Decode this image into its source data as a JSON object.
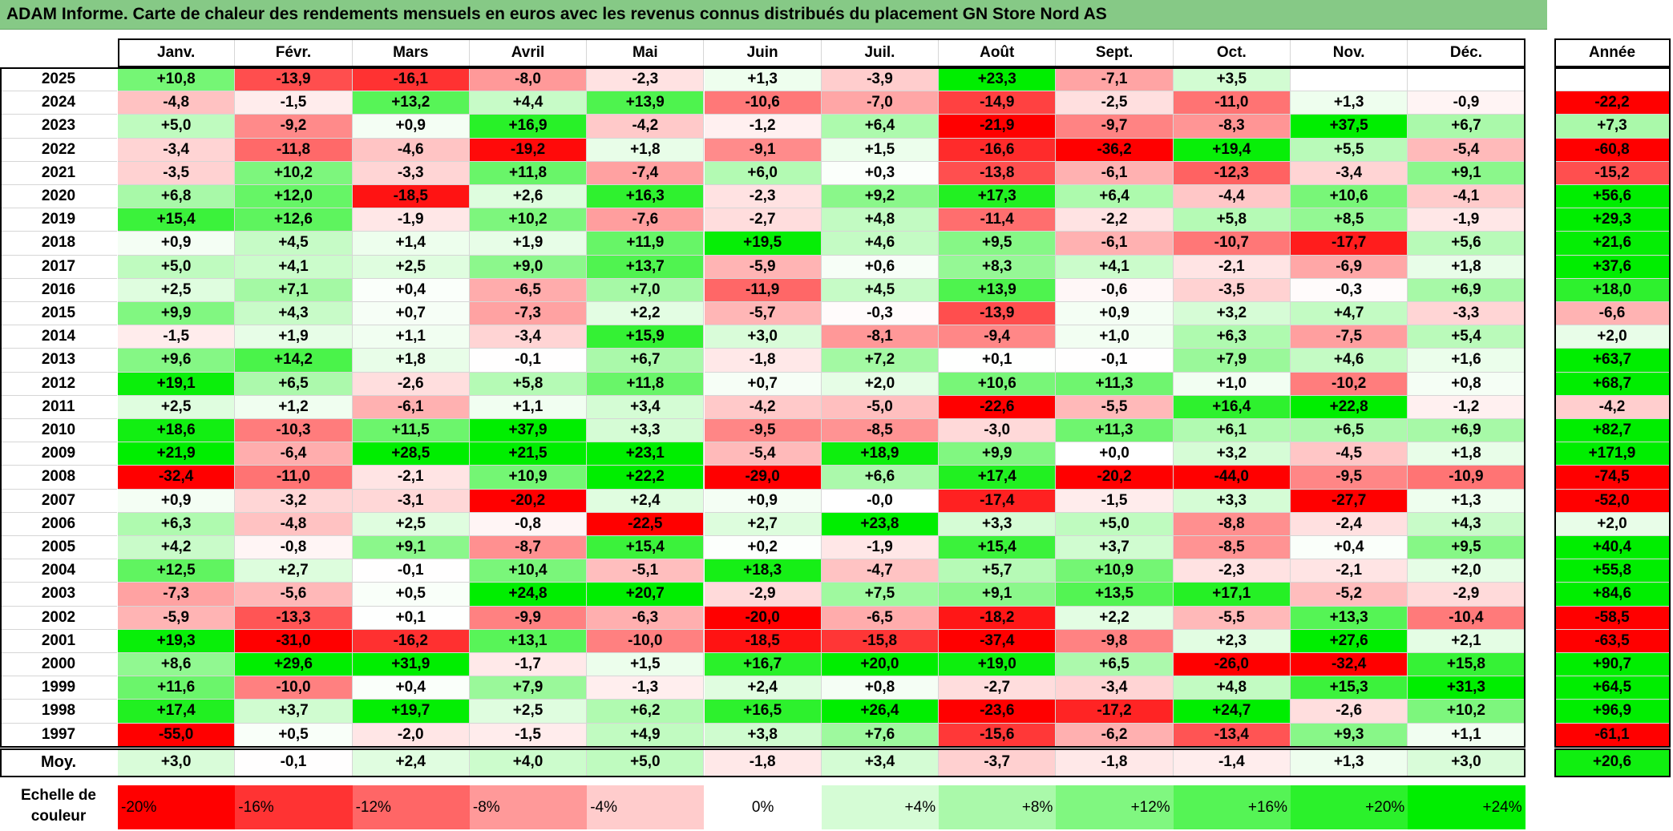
{
  "title": "ADAM Informe. Carte de chaleur des rendements mensuels en euros avec les revenus connus distribués du placement GN Store Nord AS",
  "colors": {
    "title_bg": "#86c986",
    "neg_max": "#ff0000",
    "pos_max": "#00ee00",
    "neutral": "#ffffff"
  },
  "chart_data": {
    "type": "heatmap",
    "title": "ADAM Informe. Carte de chaleur des rendements mensuels en euros avec les revenus connus distribués du placement GN Store Nord AS",
    "months": [
      "Janv.",
      "Févr.",
      "Mars",
      "Avril",
      "Mai",
      "Juin",
      "Juil.",
      "Août",
      "Sept.",
      "Oct.",
      "Nov.",
      "Déc."
    ],
    "year_header": "Année",
    "rows": [
      {
        "year": "2025",
        "m": [
          "+10,8",
          "-13,9",
          "-16,1",
          "-8,0",
          "-2,3",
          "+1,3",
          "-3,9",
          "+23,3",
          "-7,1",
          "+3,5",
          "",
          ""
        ],
        "y": ""
      },
      {
        "year": "2024",
        "m": [
          "-4,8",
          "-1,5",
          "+13,2",
          "+4,4",
          "+13,9",
          "-10,6",
          "-7,0",
          "-14,9",
          "-2,5",
          "-11,0",
          "+1,3",
          "-0,9"
        ],
        "y": "-22,2"
      },
      {
        "year": "2023",
        "m": [
          "+5,0",
          "-9,2",
          "+0,9",
          "+16,9",
          "-4,2",
          "-1,2",
          "+6,4",
          "-21,9",
          "-9,7",
          "-8,3",
          "+37,5",
          "+6,7"
        ],
        "y": "+7,3"
      },
      {
        "year": "2022",
        "m": [
          "-3,4",
          "-11,8",
          "-4,6",
          "-19,2",
          "+1,8",
          "-9,1",
          "+1,5",
          "-16,6",
          "-36,2",
          "+19,4",
          "+5,5",
          "-5,4"
        ],
        "y": "-60,8"
      },
      {
        "year": "2021",
        "m": [
          "-3,5",
          "+10,2",
          "-3,3",
          "+11,8",
          "-7,4",
          "+6,0",
          "+0,3",
          "-13,8",
          "-6,1",
          "-12,3",
          "-3,4",
          "+9,1"
        ],
        "y": "-15,2"
      },
      {
        "year": "2020",
        "m": [
          "+6,8",
          "+12,0",
          "-18,5",
          "+2,6",
          "+16,3",
          "-2,3",
          "+9,2",
          "+17,3",
          "+6,4",
          "-4,4",
          "+10,6",
          "-4,1"
        ],
        "y": "+56,6"
      },
      {
        "year": "2019",
        "m": [
          "+15,4",
          "+12,6",
          "-1,9",
          "+10,2",
          "-7,6",
          "-2,7",
          "+4,8",
          "-11,4",
          "-2,2",
          "+5,8",
          "+8,5",
          "-1,9"
        ],
        "y": "+29,3"
      },
      {
        "year": "2018",
        "m": [
          "+0,9",
          "+4,5",
          "+1,4",
          "+1,9",
          "+11,9",
          "+19,5",
          "+4,6",
          "+9,5",
          "-6,1",
          "-10,7",
          "-17,7",
          "+5,6"
        ],
        "y": "+21,6"
      },
      {
        "year": "2017",
        "m": [
          "+5,0",
          "+4,1",
          "+2,5",
          "+9,0",
          "+13,7",
          "-5,9",
          "+0,6",
          "+8,3",
          "+4,1",
          "-2,1",
          "-6,9",
          "+1,8"
        ],
        "y": "+37,6"
      },
      {
        "year": "2016",
        "m": [
          "+2,5",
          "+7,1",
          "+0,4",
          "-6,5",
          "+7,0",
          "-11,9",
          "+4,5",
          "+13,9",
          "-0,6",
          "-3,5",
          "-0,3",
          "+6,9"
        ],
        "y": "+18,0"
      },
      {
        "year": "2015",
        "m": [
          "+9,9",
          "+4,3",
          "+0,7",
          "-7,3",
          "+2,2",
          "-5,7",
          "-0,3",
          "-13,9",
          "+0,9",
          "+3,2",
          "+4,7",
          "-3,3"
        ],
        "y": "-6,6"
      },
      {
        "year": "2014",
        "m": [
          "-1,5",
          "+1,9",
          "+1,1",
          "-3,4",
          "+15,9",
          "+3,0",
          "-8,1",
          "-9,4",
          "+1,0",
          "+6,3",
          "-7,5",
          "+5,4"
        ],
        "y": "+2,0"
      },
      {
        "year": "2013",
        "m": [
          "+9,6",
          "+14,2",
          "+1,8",
          "-0,1",
          "+6,7",
          "-1,8",
          "+7,2",
          "+0,1",
          "-0,1",
          "+7,9",
          "+4,6",
          "+1,6"
        ],
        "y": "+63,7"
      },
      {
        "year": "2012",
        "m": [
          "+19,1",
          "+6,5",
          "-2,6",
          "+5,8",
          "+11,8",
          "+0,7",
          "+2,0",
          "+10,6",
          "+11,3",
          "+1,0",
          "-10,2",
          "+0,8"
        ],
        "y": "+68,7"
      },
      {
        "year": "2011",
        "m": [
          "+2,5",
          "+1,2",
          "-6,1",
          "+1,1",
          "+3,4",
          "-4,2",
          "-5,0",
          "-22,6",
          "-5,5",
          "+16,4",
          "+22,8",
          "-1,2"
        ],
        "y": "-4,2"
      },
      {
        "year": "2010",
        "m": [
          "+18,6",
          "-10,3",
          "+11,5",
          "+37,9",
          "+3,3",
          "-9,5",
          "-8,5",
          "-3,0",
          "+11,3",
          "+6,1",
          "+6,5",
          "+6,9"
        ],
        "y": "+82,7"
      },
      {
        "year": "2009",
        "m": [
          "+21,9",
          "-6,4",
          "+28,5",
          "+21,5",
          "+23,1",
          "-5,4",
          "+18,9",
          "+9,9",
          "+0,0",
          "+3,2",
          "-4,5",
          "+1,8"
        ],
        "y": "+171,9"
      },
      {
        "year": "2008",
        "m": [
          "-32,4",
          "-11,0",
          "-2,1",
          "+10,9",
          "+22,2",
          "-29,0",
          "+6,6",
          "+17,4",
          "-20,2",
          "-44,0",
          "-9,5",
          "-10,9"
        ],
        "y": "-74,5"
      },
      {
        "year": "2007",
        "m": [
          "+0,9",
          "-3,2",
          "-3,1",
          "-20,2",
          "+2,4",
          "+0,9",
          "-0,0",
          "-17,4",
          "-1,5",
          "+3,3",
          "-27,7",
          "+1,3"
        ],
        "y": "-52,0"
      },
      {
        "year": "2006",
        "m": [
          "+6,3",
          "-4,8",
          "+2,5",
          "-0,8",
          "-22,5",
          "+2,7",
          "+23,8",
          "+3,3",
          "+5,0",
          "-8,8",
          "-2,4",
          "+4,3"
        ],
        "y": "+2,0"
      },
      {
        "year": "2005",
        "m": [
          "+4,2",
          "-0,8",
          "+9,1",
          "-8,7",
          "+15,4",
          "+0,2",
          "-1,9",
          "+15,4",
          "+3,7",
          "-8,5",
          "+0,4",
          "+9,5"
        ],
        "y": "+40,4"
      },
      {
        "year": "2004",
        "m": [
          "+12,5",
          "+2,7",
          "-0,1",
          "+10,4",
          "-5,1",
          "+18,3",
          "-4,7",
          "+5,7",
          "+10,9",
          "-2,3",
          "-2,1",
          "+2,0"
        ],
        "y": "+55,8"
      },
      {
        "year": "2003",
        "m": [
          "-7,3",
          "-5,6",
          "+0,5",
          "+24,8",
          "+20,7",
          "-2,9",
          "+7,5",
          "+9,1",
          "+13,5",
          "+17,1",
          "-5,2",
          "-2,9"
        ],
        "y": "+84,6"
      },
      {
        "year": "2002",
        "m": [
          "-5,9",
          "-13,3",
          "+0,1",
          "-9,9",
          "-6,3",
          "-20,0",
          "-6,5",
          "-18,2",
          "+2,2",
          "-5,5",
          "+13,3",
          "-10,4"
        ],
        "y": "-58,5"
      },
      {
        "year": "2001",
        "m": [
          "+19,3",
          "-31,0",
          "-16,2",
          "+13,1",
          "-10,0",
          "-18,5",
          "-15,8",
          "-37,4",
          "-9,8",
          "+2,3",
          "+27,6",
          "+2,1"
        ],
        "y": "-63,5"
      },
      {
        "year": "2000",
        "m": [
          "+8,6",
          "+29,6",
          "+31,9",
          "-1,7",
          "+1,5",
          "+16,7",
          "+20,0",
          "+19,0",
          "+6,5",
          "-26,0",
          "-32,4",
          "+15,8"
        ],
        "y": "+90,7"
      },
      {
        "year": "1999",
        "m": [
          "+11,6",
          "-10,0",
          "+0,4",
          "+7,9",
          "-1,3",
          "+2,4",
          "+0,8",
          "-2,7",
          "-3,4",
          "+4,8",
          "+15,3",
          "+31,3"
        ],
        "y": "+64,5"
      },
      {
        "year": "1998",
        "m": [
          "+17,4",
          "+3,7",
          "+19,7",
          "+2,5",
          "+6,2",
          "+16,5",
          "+26,4",
          "-23,6",
          "-17,2",
          "+24,7",
          "-2,6",
          "+10,2"
        ],
        "y": "+96,9"
      },
      {
        "year": "1997",
        "m": [
          "-55,0",
          "+0,5",
          "-2,0",
          "-1,5",
          "+4,9",
          "+3,8",
          "+7,6",
          "-15,6",
          "-6,2",
          "-13,4",
          "+9,3",
          "+1,1"
        ],
        "y": "-61,1"
      }
    ],
    "avg": {
      "label": "Moy.",
      "m": [
        "+3,0",
        "-0,1",
        "+2,4",
        "+4,0",
        "+5,0",
        "-1,8",
        "+3,4",
        "-3,7",
        "-1,8",
        "-1,4",
        "+1,3",
        "+3,0"
      ],
      "y": "+20,6"
    },
    "scale": {
      "label": "Echelle de couleur",
      "items": [
        "-20%",
        "-16%",
        "-12%",
        "-8%",
        "-4%",
        "0%",
        "+4%",
        "+8%",
        "+12%",
        "+16%",
        "+20%",
        "+24%"
      ]
    }
  }
}
